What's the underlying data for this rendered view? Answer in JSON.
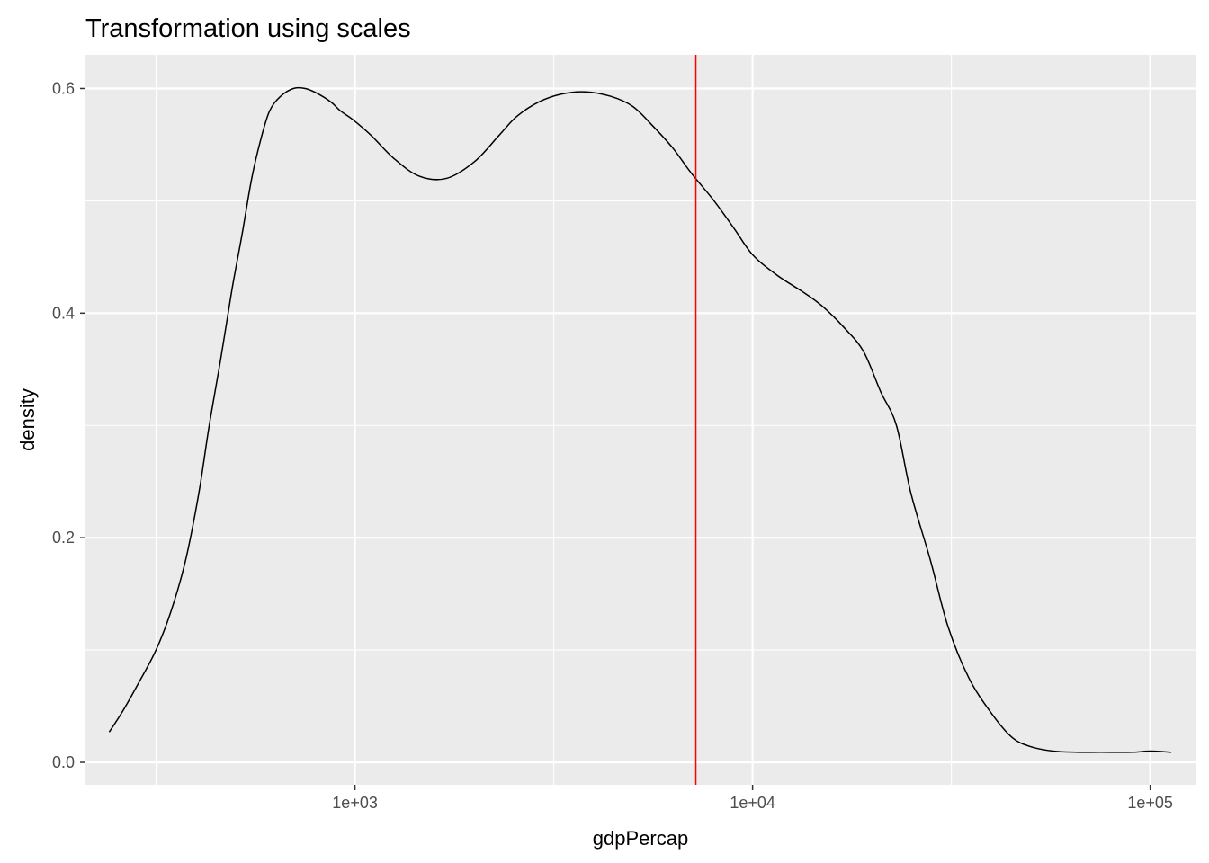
{
  "chart_data": {
    "type": "line",
    "title": "Transformation using scales",
    "xlabel": "gdpPercap",
    "ylabel": "density",
    "x_scale": "log10",
    "xlim": [
      210,
      130000
    ],
    "ylim": [
      -0.02,
      0.63
    ],
    "x_ticks": [
      {
        "value": 1000,
        "label": "1e+03"
      },
      {
        "value": 10000,
        "label": "1e+04"
      },
      {
        "value": 100000,
        "label": "1e+05"
      }
    ],
    "x_minor_ticks": [
      316.2,
      3162.3,
      31622.8
    ],
    "y_ticks": [
      {
        "value": 0.0,
        "label": "0.0"
      },
      {
        "value": 0.2,
        "label": "0.2"
      },
      {
        "value": 0.4,
        "label": "0.4"
      },
      {
        "value": 0.6,
        "label": "0.6"
      }
    ],
    "y_minor_ticks": [
      0.1,
      0.3,
      0.5
    ],
    "grid": true,
    "series": [
      {
        "x": [
          241,
          260,
          285,
          316,
          345,
          375,
          405,
          430,
          460,
          490,
          520,
          550,
          580,
          610,
          650,
          700,
          750,
          800,
          870,
          920,
          990,
          1100,
          1250,
          1450,
          1700,
          2000,
          2300,
          2550,
          2900,
          3300,
          3800,
          4400,
          5000,
          5600,
          6300,
          7000,
          8000,
          9000,
          10000,
          11500,
          13500,
          15000,
          17000,
          19000,
          21000,
          23000,
          25000,
          28000,
          31000,
          35000,
          40000,
          45000,
          50000,
          57000,
          65000,
          75000,
          90000,
          100000,
          113000
        ],
        "y": [
          0.027,
          0.045,
          0.07,
          0.1,
          0.135,
          0.18,
          0.24,
          0.3,
          0.36,
          0.42,
          0.47,
          0.52,
          0.555,
          0.58,
          0.593,
          0.6,
          0.6,
          0.596,
          0.588,
          0.58,
          0.572,
          0.558,
          0.538,
          0.522,
          0.52,
          0.535,
          0.558,
          0.575,
          0.588,
          0.595,
          0.597,
          0.593,
          0.584,
          0.567,
          0.547,
          0.525,
          0.5,
          0.475,
          0.452,
          0.434,
          0.418,
          0.406,
          0.387,
          0.366,
          0.33,
          0.3,
          0.24,
          0.18,
          0.121,
          0.075,
          0.043,
          0.022,
          0.014,
          0.01,
          0.009,
          0.009,
          0.009,
          0.01,
          0.009
        ],
        "color": "#000000"
      }
    ],
    "vline": {
      "x": 7200,
      "color": "#ff0000"
    },
    "panel_background": "#ebebeb",
    "grid_color": "#ffffff"
  }
}
